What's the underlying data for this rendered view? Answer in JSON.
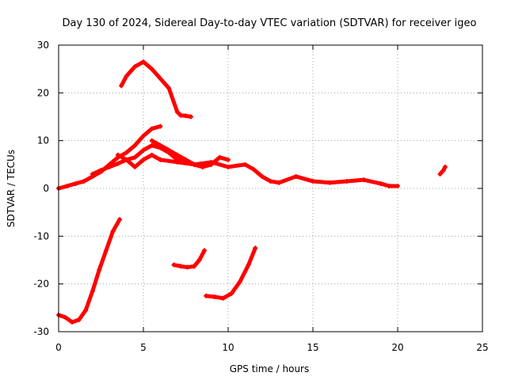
{
  "chart_data": {
    "type": "scatter",
    "title": "Day 130 of 2024, Sidereal Day-to-day VTEC variation (SDTVAR) for receiver igeo",
    "xlabel": "GPS time / hours",
    "ylabel": "SDTVAR / TECUs",
    "xlim": [
      0,
      25
    ],
    "ylim": [
      -30,
      30
    ],
    "xticks": [
      0,
      5,
      10,
      15,
      20,
      25
    ],
    "yticks": [
      -30,
      -20,
      -10,
      0,
      10,
      20,
      30
    ],
    "grid": true,
    "marker": "plus",
    "color": "#ff0000",
    "series": [
      {
        "name": "track-low-1",
        "x": [
          0.0,
          0.4,
          0.8,
          1.2,
          1.6,
          2.0,
          2.4,
          2.8,
          3.2,
          3.6
        ],
        "y": [
          -26.5,
          -27.0,
          -28.0,
          -27.5,
          -25.5,
          -21.5,
          -17.0,
          -13.0,
          -9.0,
          -6.5
        ]
      },
      {
        "name": "track-high",
        "x": [
          3.7,
          4.0,
          4.5,
          5.0,
          5.5,
          6.0,
          6.5,
          7.0,
          7.2,
          7.5,
          7.8
        ],
        "y": [
          21.5,
          23.5,
          25.5,
          26.5,
          25.0,
          23.0,
          21.0,
          16.0,
          15.3,
          15.2,
          15.0
        ]
      },
      {
        "name": "track-rise",
        "x": [
          0.0,
          0.5,
          1.0,
          1.5,
          2.0,
          2.5,
          3.0,
          3.5,
          4.0,
          4.5,
          5.0,
          5.5,
          6.0
        ],
        "y": [
          0.0,
          0.5,
          1.0,
          1.5,
          2.5,
          3.5,
          5.0,
          6.5,
          7.5,
          9.0,
          11.0,
          12.5,
          13.0
        ]
      },
      {
        "name": "track-mid-a",
        "x": [
          2.0,
          2.5,
          3.0,
          3.5,
          4.0,
          4.5,
          5.0,
          5.5,
          6.0,
          6.5,
          7.0,
          7.5,
          8.0,
          8.5
        ],
        "y": [
          3.0,
          3.8,
          4.5,
          5.2,
          6.0,
          6.5,
          8.0,
          9.0,
          8.5,
          7.5,
          6.0,
          5.5,
          5.0,
          4.5
        ]
      },
      {
        "name": "track-mid-b",
        "x": [
          5.5,
          6.0,
          6.5,
          7.0,
          7.5,
          8.0,
          8.5,
          9.0,
          9.5,
          10.0
        ],
        "y": [
          10.0,
          9.0,
          8.0,
          7.0,
          6.0,
          5.0,
          4.5,
          5.0,
          6.5,
          6.0
        ]
      },
      {
        "name": "track-mid-c",
        "x": [
          3.5,
          4.0,
          4.5,
          5.0,
          5.5,
          6.0
        ],
        "y": [
          7.0,
          6.0,
          4.5,
          6.0,
          7.0,
          6.0
        ]
      },
      {
        "name": "track-tail",
        "x": [
          6.0,
          7.0,
          8.0,
          9.0,
          10.0,
          11.0,
          11.5,
          12.0,
          12.5,
          13.0,
          14.0,
          15.0,
          16.0,
          17.0,
          18.0,
          19.0,
          19.5,
          20.0
        ],
        "y": [
          6.0,
          5.5,
          5.0,
          5.5,
          4.5,
          5.0,
          4.0,
          2.5,
          1.5,
          1.2,
          2.5,
          1.5,
          1.2,
          1.5,
          1.8,
          1.0,
          0.5,
          0.5
        ]
      },
      {
        "name": "track-low-2",
        "x": [
          6.8,
          7.2,
          7.6,
          8.0,
          8.3,
          8.6
        ],
        "y": [
          -16.0,
          -16.3,
          -16.5,
          -16.3,
          -15.0,
          -13.0
        ]
      },
      {
        "name": "track-low-3",
        "x": [
          8.7,
          9.2,
          9.7,
          10.2,
          10.7,
          11.2,
          11.6
        ],
        "y": [
          -22.5,
          -22.7,
          -23.0,
          -22.0,
          -19.5,
          -16.0,
          -12.5
        ]
      },
      {
        "name": "track-late",
        "x": [
          22.5,
          22.7,
          22.8
        ],
        "y": [
          3.0,
          3.8,
          4.5
        ]
      }
    ]
  }
}
